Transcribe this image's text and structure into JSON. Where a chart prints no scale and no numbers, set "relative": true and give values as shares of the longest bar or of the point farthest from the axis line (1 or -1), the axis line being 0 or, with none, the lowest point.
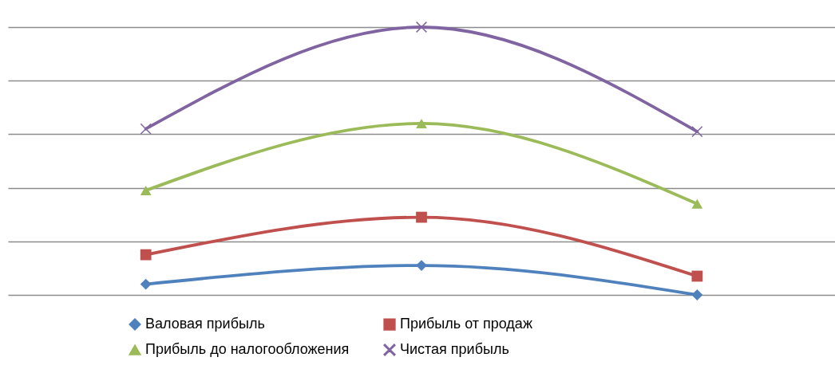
{
  "chart_data": {
    "type": "line",
    "relative": true,
    "grid": "y",
    "legend": "bottom",
    "categories": [
      null,
      null,
      null
    ],
    "series": [
      {
        "name": "Валовая прибыль",
        "color": "#4f81bd",
        "marker": "diamond",
        "values": [
          0.04,
          0.11,
          0.0
        ]
      },
      {
        "name": "Прибыль от продаж",
        "color": "#c0504d",
        "marker": "square",
        "values": [
          0.15,
          0.29,
          0.07
        ]
      },
      {
        "name": "Прибыль до налогообложения",
        "color": "#9bbb59",
        "marker": "triangle",
        "values": [
          0.39,
          0.64,
          0.34
        ]
      },
      {
        "name": "Чистая прибыль",
        "color": "#8064a2",
        "marker": "cross",
        "values": [
          0.62,
          1.0,
          0.61
        ]
      }
    ]
  }
}
